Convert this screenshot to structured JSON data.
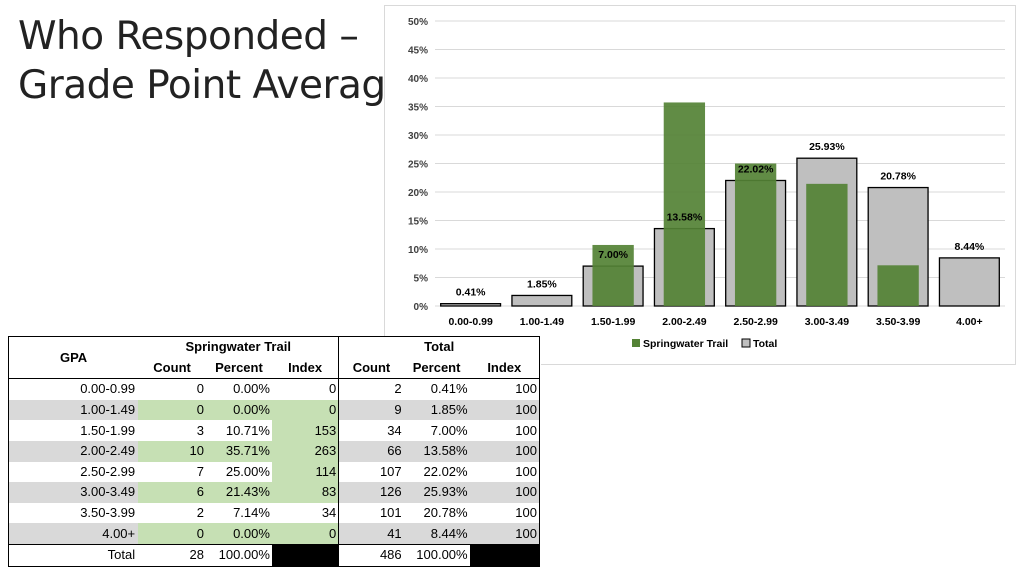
{
  "title": {
    "line1": "Who Responded –",
    "line2": "Grade Point Average"
  },
  "colors": {
    "springwater": "#548235",
    "total_fill": "#bfbfbf",
    "total_stroke": "#000000",
    "highlight": "#c6e0b4",
    "shade": "#d9d9d9"
  },
  "chart_data": {
    "type": "bar",
    "categories": [
      "0.00-0.99",
      "1.00-1.49",
      "1.50-1.99",
      "2.00-2.49",
      "2.50-2.99",
      "3.00-3.49",
      "3.50-3.99",
      "4.00+"
    ],
    "series": [
      {
        "name": "Springwater Trail",
        "values": [
          0,
          0,
          10.71,
          35.71,
          25.0,
          21.43,
          7.14,
          0
        ]
      },
      {
        "name": "Total",
        "values": [
          0.41,
          1.85,
          7.0,
          13.58,
          22.02,
          25.93,
          20.78,
          8.44
        ]
      }
    ],
    "data_labels": [
      "0.41%",
      "1.85%",
      "7.00%",
      "13.58%",
      "22.02%",
      "25.93%",
      "20.78%",
      "8.44%"
    ],
    "yticks": [
      "0%",
      "5%",
      "10%",
      "15%",
      "20%",
      "25%",
      "30%",
      "35%",
      "40%",
      "45%",
      "50%"
    ],
    "ylim": [
      0,
      50
    ],
    "legend": {
      "placement": "bottom",
      "items": [
        "Springwater Trail",
        "Total"
      ]
    },
    "title": "",
    "xlabel": "",
    "ylabel": ""
  },
  "table": {
    "gpa_header": "GPA",
    "group1": "Springwater Trail",
    "group2": "Total",
    "sub_headers": [
      "Count",
      "Percent",
      "Index",
      "Count",
      "Percent",
      "Index"
    ],
    "rows": [
      {
        "gpa": "0.00-0.99",
        "sw_count": "0",
        "sw_pct": "0.00%",
        "sw_index": "0",
        "t_count": "2",
        "t_pct": "0.41%",
        "t_index": "100"
      },
      {
        "gpa": "1.00-1.49",
        "sw_count": "0",
        "sw_pct": "0.00%",
        "sw_index": "0",
        "t_count": "9",
        "t_pct": "1.85%",
        "t_index": "100"
      },
      {
        "gpa": "1.50-1.99",
        "sw_count": "3",
        "sw_pct": "10.71%",
        "sw_index": "153",
        "t_count": "34",
        "t_pct": "7.00%",
        "t_index": "100"
      },
      {
        "gpa": "2.00-2.49",
        "sw_count": "10",
        "sw_pct": "35.71%",
        "sw_index": "263",
        "t_count": "66",
        "t_pct": "13.58%",
        "t_index": "100"
      },
      {
        "gpa": "2.50-2.99",
        "sw_count": "7",
        "sw_pct": "25.00%",
        "sw_index": "114",
        "t_count": "107",
        "t_pct": "22.02%",
        "t_index": "100"
      },
      {
        "gpa": "3.00-3.49",
        "sw_count": "6",
        "sw_pct": "21.43%",
        "sw_index": "83",
        "t_count": "126",
        "t_pct": "25.93%",
        "t_index": "100"
      },
      {
        "gpa": "3.50-3.99",
        "sw_count": "2",
        "sw_pct": "7.14%",
        "sw_index": "34",
        "t_count": "101",
        "t_pct": "20.78%",
        "t_index": "100"
      },
      {
        "gpa": "4.00+",
        "sw_count": "0",
        "sw_pct": "0.00%",
        "sw_index": "0",
        "t_count": "41",
        "t_pct": "8.44%",
        "t_index": "100"
      }
    ],
    "total": {
      "label": "Total",
      "sw_count": "28",
      "sw_pct": "100.00%",
      "t_count": "486",
      "t_pct": "100.00%"
    }
  }
}
